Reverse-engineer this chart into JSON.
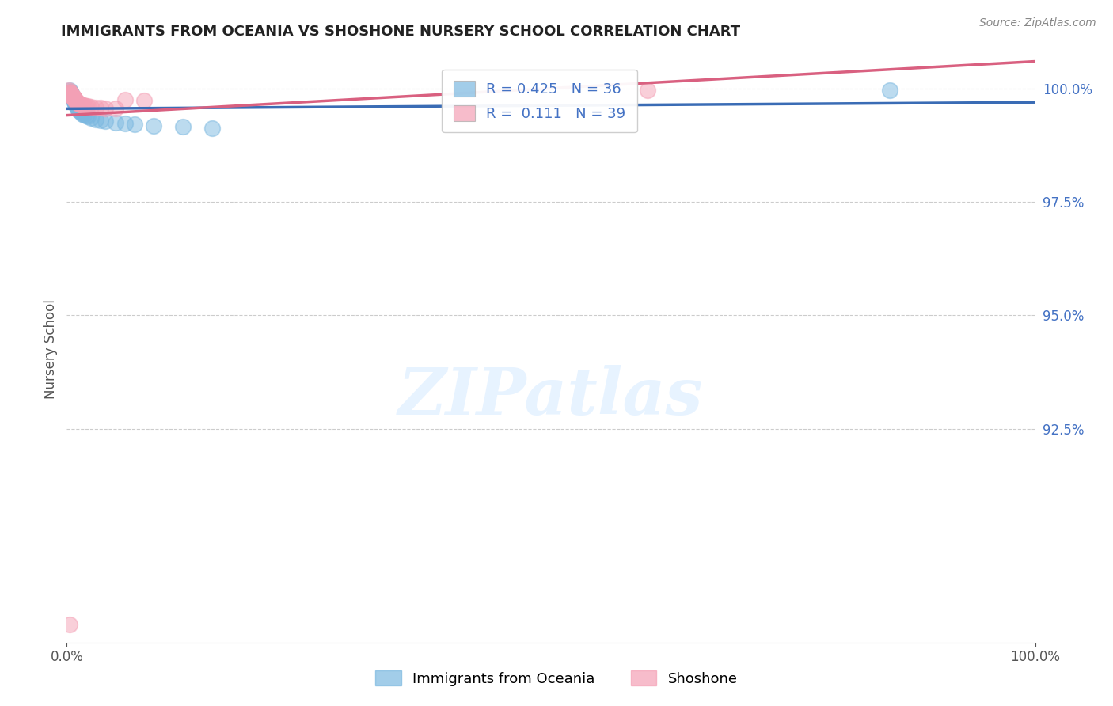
{
  "title": "IMMIGRANTS FROM OCEANIA VS SHOSHONE NURSERY SCHOOL CORRELATION CHART",
  "source": "Source: ZipAtlas.com",
  "ylabel": "Nursery School",
  "xlim": [
    0.0,
    1.0
  ],
  "ylim": [
    0.878,
    1.007
  ],
  "yticks": [
    0.925,
    0.95,
    0.975,
    1.0
  ],
  "ytick_labels": [
    "92.5%",
    "95.0%",
    "97.5%",
    "100.0%"
  ],
  "xticks": [
    0.0,
    1.0
  ],
  "xtick_labels": [
    "0.0%",
    "100.0%"
  ],
  "blue_label": "Immigrants from Oceania",
  "pink_label": "Shoshone",
  "blue_R": 0.425,
  "blue_N": 36,
  "pink_R": 0.111,
  "pink_N": 39,
  "blue_color": "#7bb8e0",
  "pink_color": "#f4a0b5",
  "blue_line_color": "#3a6cb5",
  "pink_line_color": "#d96080",
  "blue_scatter_x": [
    0.003,
    0.004,
    0.004,
    0.005,
    0.005,
    0.005,
    0.006,
    0.006,
    0.007,
    0.007,
    0.008,
    0.008,
    0.009,
    0.009,
    0.01,
    0.01,
    0.011,
    0.011,
    0.012,
    0.013,
    0.015,
    0.016,
    0.018,
    0.02,
    0.022,
    0.025,
    0.03,
    0.035,
    0.04,
    0.05,
    0.06,
    0.07,
    0.09,
    0.12,
    0.15,
    0.85
  ],
  "blue_scatter_y": [
    0.9995,
    0.9993,
    0.9991,
    0.9988,
    0.9985,
    0.9983,
    0.9982,
    0.998,
    0.9978,
    0.9975,
    0.9972,
    0.997,
    0.9967,
    0.9965,
    0.9963,
    0.996,
    0.9958,
    0.9955,
    0.9952,
    0.995,
    0.9947,
    0.9944,
    0.9942,
    0.994,
    0.9938,
    0.9935,
    0.9932,
    0.993,
    0.9928,
    0.9925,
    0.9922,
    0.992,
    0.9918,
    0.9915,
    0.9912,
    0.9995
  ],
  "pink_scatter_x": [
    0.002,
    0.003,
    0.003,
    0.004,
    0.004,
    0.005,
    0.005,
    0.005,
    0.006,
    0.006,
    0.006,
    0.007,
    0.007,
    0.008,
    0.008,
    0.008,
    0.009,
    0.009,
    0.01,
    0.01,
    0.01,
    0.011,
    0.012,
    0.013,
    0.014,
    0.015,
    0.016,
    0.018,
    0.02,
    0.022,
    0.025,
    0.03,
    0.035,
    0.04,
    0.05,
    0.06,
    0.08,
    0.6,
    0.003
  ],
  "pink_scatter_y": [
    0.9995,
    0.9993,
    0.9991,
    0.999,
    0.9988,
    0.9987,
    0.9985,
    0.9984,
    0.9983,
    0.9982,
    0.998,
    0.998,
    0.9978,
    0.9978,
    0.9976,
    0.9975,
    0.9974,
    0.9973,
    0.9972,
    0.997,
    0.9969,
    0.9968,
    0.9967,
    0.9966,
    0.9965,
    0.9964,
    0.9963,
    0.9962,
    0.9961,
    0.996,
    0.9959,
    0.9958,
    0.9957,
    0.9956,
    0.9955,
    0.9975,
    0.9973,
    0.9995,
    0.882
  ],
  "watermark_text": "ZIPatlas",
  "background_color": "#ffffff",
  "grid_color": "#cccccc",
  "tick_color": "#4472c4",
  "label_color": "#555555"
}
